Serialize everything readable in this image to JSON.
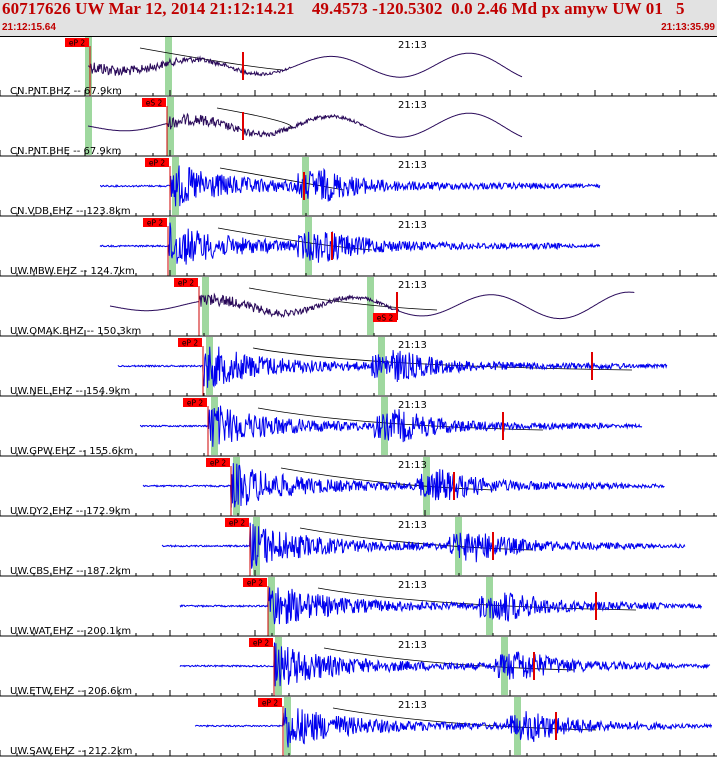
{
  "header": {
    "title": "60717626 UW Mar 12, 2014 21:12:14.21    49.4573 -120.5302  0.0 2.46 Md px amyw UW 01   5",
    "start_time": "21:12:15.64",
    "end_time": "21:13:35.99"
  },
  "colors": {
    "accent": "#c00000",
    "pick_bg": "#ff0000",
    "pick_text": "#000000",
    "trace_dark": "#2a0a5a",
    "trace_blue": "#0000ee",
    "green_band": "#9fd89f",
    "tick": "#000000"
  },
  "chart_data": {
    "type": "line",
    "title": "60717626 UW Mar 12, 2014 21:12:14.21    49.4573 -120.5302  0.0 2.46 Md px amyw UW 01   5",
    "x_range": [
      "21:12:15.64",
      "21:13:35.99"
    ],
    "time_marker": "21:13",
    "grid": false,
    "channels": [
      {
        "label": "CN.PNT.BHZ -- 67.9km",
        "network": "CN",
        "station": "PNT",
        "channel": "BHZ",
        "distance_km": 67.9,
        "picks": [
          "eP 2"
        ],
        "style": "long-period",
        "color": "#2a0a5a"
      },
      {
        "label": "CN.PNT.BHE -- 67.9km",
        "network": "CN",
        "station": "PNT",
        "channel": "BHE",
        "distance_km": 67.9,
        "picks": [
          "eS 2"
        ],
        "style": "long-period",
        "color": "#2a0a5a"
      },
      {
        "label": "CN.VDB.EHZ -- 123.8km",
        "network": "CN",
        "station": "VDB",
        "channel": "EHZ",
        "distance_km": 123.8,
        "picks": [
          "eP 2"
        ],
        "style": "short-period",
        "color": "#0000ee"
      },
      {
        "label": "UW.MBW.EHZ -- 124.7km",
        "network": "UW",
        "station": "MBW",
        "channel": "EHZ",
        "distance_km": 124.7,
        "picks": [
          "eP 2"
        ],
        "style": "short-period",
        "color": "#0000ee"
      },
      {
        "label": "UW.OMAK.BHZ -- 150.3km",
        "network": "UW",
        "station": "OMAK",
        "channel": "BHZ",
        "distance_km": 150.3,
        "picks": [
          "eP 2",
          "eS 2"
        ],
        "style": "long-period",
        "color": "#2a0a5a"
      },
      {
        "label": "UW.NEL.EHZ -- 154.9km",
        "network": "UW",
        "station": "NEL",
        "channel": "EHZ",
        "distance_km": 154.9,
        "picks": [
          "eP 2"
        ],
        "style": "short-period",
        "color": "#0000ee"
      },
      {
        "label": "UW.GPW.EHZ -- 155.6km",
        "network": "UW",
        "station": "GPW",
        "channel": "EHZ",
        "distance_km": 155.6,
        "picks": [
          "eP 2"
        ],
        "style": "short-period",
        "color": "#0000ee"
      },
      {
        "label": "UW.DY2.EHZ -- 172.9km",
        "network": "UW",
        "station": "DY2",
        "channel": "EHZ",
        "distance_km": 172.9,
        "picks": [
          "eP 2"
        ],
        "style": "short-period",
        "color": "#0000ee"
      },
      {
        "label": "UW.CBS.EHZ -- 187.2km",
        "network": "UW",
        "station": "CBS",
        "channel": "EHZ",
        "distance_km": 187.2,
        "picks": [
          "eP 2"
        ],
        "style": "short-period",
        "color": "#0000ee"
      },
      {
        "label": "UW.WAT.EHZ -- 200.1km",
        "network": "UW",
        "station": "WAT",
        "channel": "EHZ",
        "distance_km": 200.1,
        "picks": [
          "eP 2"
        ],
        "style": "short-period",
        "color": "#0000ee"
      },
      {
        "label": "UW.ETW.EHZ -- 206.6km",
        "network": "UW",
        "station": "ETW",
        "channel": "EHZ",
        "distance_km": 206.6,
        "picks": [
          "eP 2"
        ],
        "style": "short-period",
        "color": "#0000ee"
      },
      {
        "label": "UW.SAW.EHZ -- 212.2km",
        "network": "UW",
        "station": "SAW",
        "channel": "EHZ",
        "distance_km": 212.2,
        "picks": [
          "eP 2"
        ],
        "style": "short-period",
        "color": "#0000ee"
      }
    ]
  }
}
